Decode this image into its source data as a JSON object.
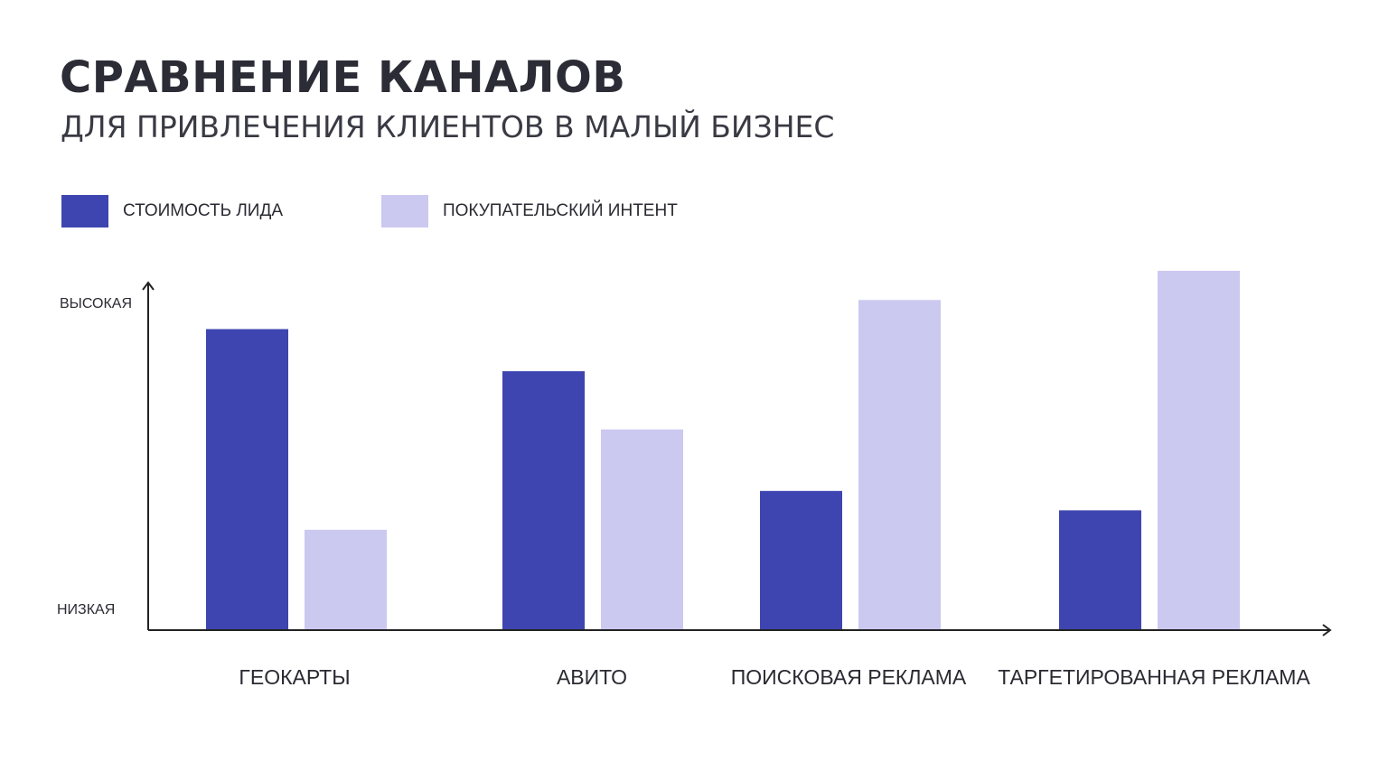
{
  "title": "СРАВНЕНИЕ КАНАЛОВ",
  "subtitle": "ДЛЯ ПРИВЛЕЧЕНИЯ КЛИЕНТОВ В МАЛЫЙ БИЗНЕС",
  "colors": {
    "series_1": "#3e45b0",
    "series_2": "#cbc9f0",
    "axis": "#222222"
  },
  "chart_data": {
    "type": "bar",
    "categories": [
      "ГЕОКАРТЫ",
      "АВИТО",
      "ПОИСКОВАЯ РЕКЛАМА",
      "ТАРГЕТИРОВАННАЯ РЕКЛАМА"
    ],
    "series": [
      {
        "name": "СТОИМОСТЬ ЛИДА",
        "values": [
          0.93,
          0.8,
          0.43,
          0.37
        ]
      },
      {
        "name": "ПОКУПАТЕЛЬСКИЙ ИНТЕНТ",
        "values": [
          0.31,
          0.62,
          1.02,
          1.11
        ]
      }
    ],
    "y_tick_labels": {
      "high": "ВЫСОКАЯ",
      "low": "НИЗКАЯ"
    },
    "ylim": [
      0,
      1.11
    ],
    "xlabel": "",
    "ylabel": "",
    "grid": false,
    "legend_position": "top-left"
  }
}
